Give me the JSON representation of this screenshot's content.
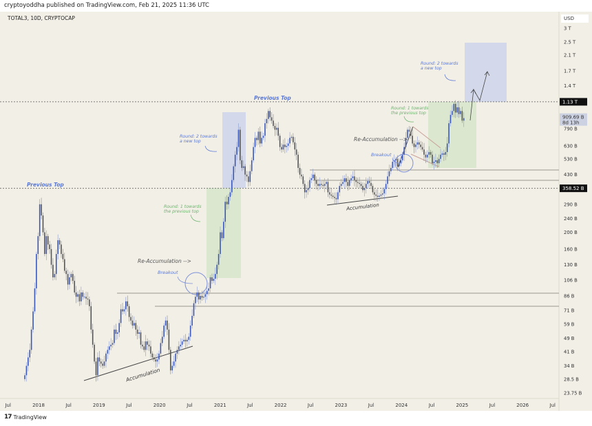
{
  "header": {
    "published": "cryptoyoddha published on TradingView.com, Feb 21, 2025 11:36 UTC",
    "symbol": "TOTAL3, 10D, CRYPTOCAP",
    "currency": "USD"
  },
  "footer": {
    "brand": "TradingView",
    "logo_icon": "tradingview-logo-icon"
  },
  "colors": {
    "background": "#f2efe7",
    "up_candle": "#3a57b8",
    "down_candle": "#555555",
    "round1_zone": "#dbe8cf",
    "round2_zone": "#d3d9ea",
    "annotation_blue": "#5a78d6",
    "annotation_green": "#6db36d"
  },
  "chart_data": {
    "type": "candlestick",
    "title": "TOTAL3, 10D, CRYPTOCAP",
    "interval": "10D",
    "y_scale": "log",
    "y_unit": "B USD",
    "ylim": [
      23.75,
      3000
    ],
    "grid": false,
    "closes": [
      30,
      34,
      38,
      42,
      55,
      70,
      95,
      150,
      190,
      290,
      250,
      200,
      150,
      190,
      170,
      160,
      130,
      110,
      115,
      150,
      180,
      170,
      150,
      140,
      120,
      115,
      100,
      110,
      115,
      105,
      90,
      85,
      88,
      80,
      90,
      85,
      85,
      83,
      82,
      75,
      55,
      45,
      36,
      30,
      38,
      36,
      35,
      34,
      36,
      40,
      42,
      44,
      45,
      46,
      55,
      52,
      53,
      60,
      72,
      70,
      72,
      80,
      75,
      65,
      62,
      58,
      60,
      55,
      52,
      53,
      45,
      44,
      42,
      47,
      45,
      44,
      40,
      38,
      37,
      36,
      37,
      40,
      46,
      50,
      58,
      62,
      55,
      42,
      32,
      34,
      36,
      40,
      42,
      44,
      45,
      47,
      48,
      47,
      48,
      50,
      58,
      66,
      78,
      85,
      90,
      82,
      86,
      84,
      85,
      88,
      92,
      95,
      110,
      105,
      108,
      115,
      130,
      150,
      200,
      185,
      230,
      300,
      290,
      320,
      340,
      400,
      480,
      560,
      620,
      780,
      520,
      470,
      480,
      430,
      420,
      390,
      450,
      520,
      620,
      700,
      680,
      760,
      650,
      700,
      720,
      850,
      900,
      1000,
      920,
      880,
      820,
      780,
      800,
      720,
      620,
      600,
      640,
      620,
      630,
      650,
      700,
      710,
      660,
      600,
      560,
      470,
      430,
      420,
      380,
      340,
      350,
      360,
      400,
      410,
      430,
      400,
      380,
      370,
      380,
      375,
      370,
      380,
      390,
      340,
      330,
      325,
      320,
      315,
      310,
      340,
      370,
      380,
      390,
      410,
      390,
      370,
      400,
      410,
      420,
      400,
      390,
      385,
      380,
      370,
      350,
      360,
      380,
      395,
      385,
      370,
      340,
      330,
      325,
      320,
      325,
      330,
      335,
      355,
      380,
      420,
      450,
      470,
      510,
      520,
      530,
      480,
      500,
      520,
      560,
      620,
      700,
      780,
      760,
      720,
      650,
      620,
      640,
      660,
      640,
      620,
      600,
      560,
      540,
      560,
      580,
      560,
      500,
      510,
      520,
      500,
      530,
      560,
      570,
      560,
      580,
      650,
      850,
      950,
      1000,
      1100,
      980,
      1050,
      960,
      1000,
      880,
      910
    ],
    "y_ticks": [
      {
        "label": "3 T",
        "value": 3000
      },
      {
        "label": "2.5 T",
        "value": 2500
      },
      {
        "label": "2.1 T",
        "value": 2100
      },
      {
        "label": "1.7 T",
        "value": 1700
      },
      {
        "label": "1.4 T",
        "value": 1400
      },
      {
        "label": "790 B",
        "value": 790
      },
      {
        "label": "630 B",
        "value": 630
      },
      {
        "label": "530 B",
        "value": 530
      },
      {
        "label": "430 B",
        "value": 430
      },
      {
        "label": "290 B",
        "value": 290
      },
      {
        "label": "240 B",
        "value": 240
      },
      {
        "label": "200 B",
        "value": 200
      },
      {
        "label": "160 B",
        "value": 160
      },
      {
        "label": "130 B",
        "value": 130
      },
      {
        "label": "106 B",
        "value": 106
      },
      {
        "label": "86 B",
        "value": 86
      },
      {
        "label": "71 B",
        "value": 71
      },
      {
        "label": "59 B",
        "value": 59
      },
      {
        "label": "49 B",
        "value": 49
      },
      {
        "label": "41 B",
        "value": 41
      },
      {
        "label": "34 B",
        "value": 34
      },
      {
        "label": "28.5 B",
        "value": 28.5
      },
      {
        "label": "23.75 B",
        "value": 23.75
      }
    ],
    "x_ticks": [
      {
        "label": "Jul",
        "date": "2017-07-01"
      },
      {
        "label": "2018",
        "date": "2018-01-01"
      },
      {
        "label": "Jul",
        "date": "2018-07-01"
      },
      {
        "label": "2019",
        "date": "2019-01-01"
      },
      {
        "label": "Jul",
        "date": "2019-07-01"
      },
      {
        "label": "2020",
        "date": "2020-01-01"
      },
      {
        "label": "Jul",
        "date": "2020-07-01"
      },
      {
        "label": "2021",
        "date": "2021-01-01"
      },
      {
        "label": "Jul",
        "date": "2021-07-01"
      },
      {
        "label": "2022",
        "date": "2022-01-01"
      },
      {
        "label": "Jul",
        "date": "2022-07-01"
      },
      {
        "label": "2023",
        "date": "2023-01-01"
      },
      {
        "label": "Jul",
        "date": "2023-07-01"
      },
      {
        "label": "2024",
        "date": "2024-01-01"
      },
      {
        "label": "Jul",
        "date": "2024-07-01"
      },
      {
        "label": "2025",
        "date": "2025-01-01"
      },
      {
        "label": "Jul",
        "date": "2025-07-01"
      },
      {
        "label": "2026",
        "date": "2026-01-01"
      },
      {
        "label": "Jul",
        "date": "2026-07-01"
      }
    ],
    "price_labels": [
      {
        "label": "1.13 T",
        "value": 1130,
        "style": "level"
      },
      {
        "label": "358.52 B",
        "value": 358.52,
        "style": "level"
      },
      {
        "label": "909.69 B",
        "value": 909.69,
        "style": "last",
        "countdown": "8d 13h"
      }
    ],
    "annotations": {
      "previous_top_1": "Previous Top",
      "previous_top_2": "Previous Top",
      "accumulation_1": "Accumulation",
      "accumulation_2": "Accumulation",
      "reaccumulation_1": "Re-Accumulation -->",
      "reaccumulation_2": "Re-Accumulation -->",
      "breakout_1": "Breakout",
      "breakout_2": "Breakout",
      "round1_1": [
        "Round: 1 towards",
        "the previous top"
      ],
      "round1_2": [
        "Round: 1 towards",
        "the previous top"
      ],
      "round2_1": [
        "Round: 2 towards",
        "a new top"
      ],
      "round2_2": [
        "Round: 2 towards",
        "a new top"
      ]
    }
  }
}
